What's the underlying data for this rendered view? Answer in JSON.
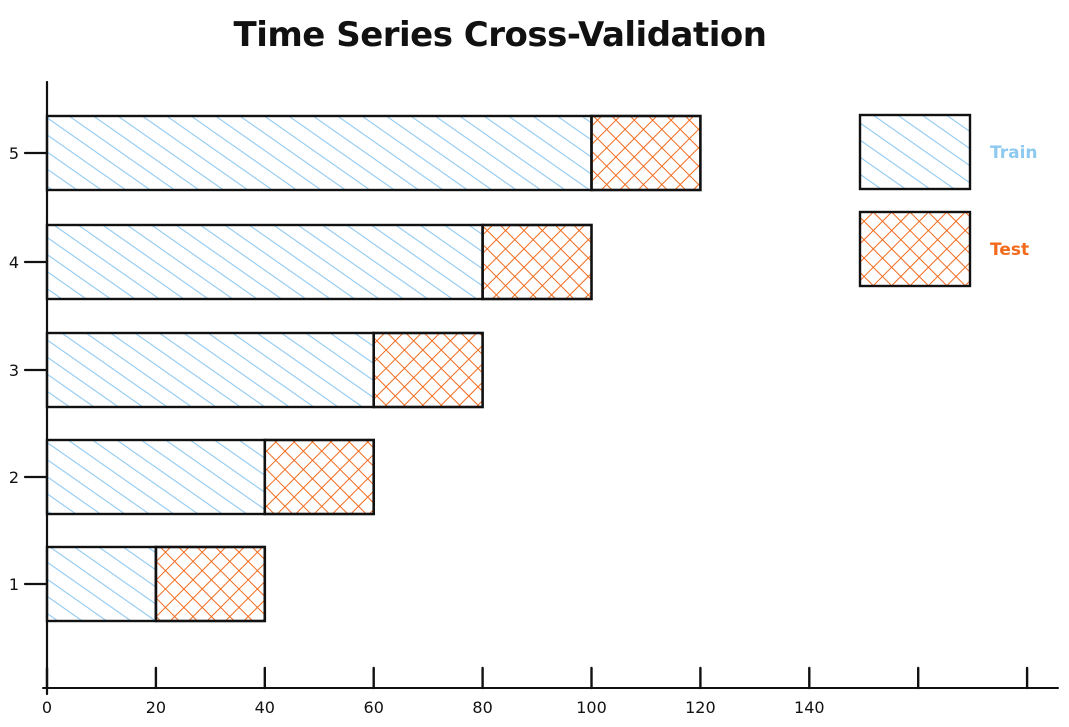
{
  "chart_data": {
    "type": "bar",
    "orientation": "horizontal",
    "stacked": true,
    "title": "Time Series Cross-Validation",
    "xlabel": "",
    "ylabel": "",
    "xlim": [
      0,
      180
    ],
    "x_ticks": [
      0,
      20,
      40,
      60,
      80,
      100,
      120,
      140,
      160,
      180
    ],
    "x_tick_labels": [
      "0",
      "20",
      "40",
      "60",
      "80",
      "100",
      "120",
      "140",
      "",
      ""
    ],
    "categories": [
      "1",
      "2",
      "3",
      "4",
      "5"
    ],
    "series": [
      {
        "name": "Train",
        "values": [
          20,
          40,
          60,
          80,
          100
        ]
      },
      {
        "name": "Test",
        "values": [
          20,
          20,
          20,
          20,
          20
        ]
      }
    ],
    "legend_position": "top-right",
    "grid": false,
    "colors": {
      "Train": "#8ec9f0",
      "Test": "#f26b1d",
      "outline": "#111111"
    }
  }
}
